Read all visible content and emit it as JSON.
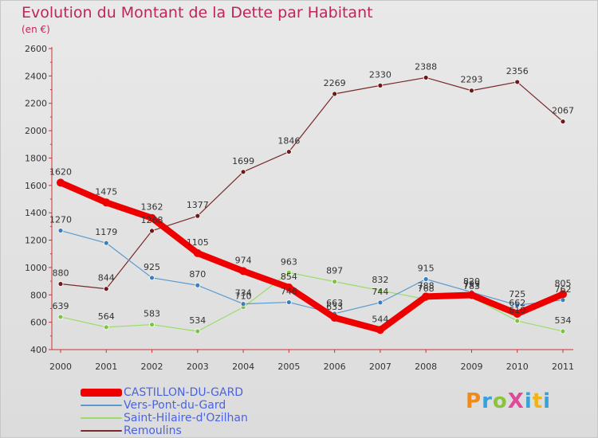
{
  "header": {
    "title": "Evolution du Montant de la Dette par Habitant",
    "unit": "(en €)"
  },
  "brand": {
    "logo_text": "ProXiti"
  },
  "chart_data": {
    "type": "line",
    "title": "Evolution du Montant de la Dette par Habitant",
    "subtitle": "(en €)",
    "xlabel": "",
    "ylabel": "",
    "x": [
      "2000",
      "2001",
      "2002",
      "2003",
      "2004",
      "2005",
      "2006",
      "2007",
      "2008",
      "2009",
      "2010",
      "2011"
    ],
    "ylim": [
      400,
      2600
    ],
    "yticks": [
      400,
      600,
      800,
      1000,
      1200,
      1400,
      1600,
      1800,
      2000,
      2200,
      2400,
      2600
    ],
    "grid": false,
    "legend_position": "bottom-left",
    "series": [
      {
        "name": "CASTILLON-DU-GARD",
        "color": "#ee0000",
        "marker_color": "#ee0000",
        "values": [
          1620,
          1475,
          1362,
          1105,
          974,
          854,
          633,
          544,
          788,
          799,
          662,
          805
        ],
        "labels": [
          "1620",
          "1475",
          "1362",
          "1105",
          "974",
          "854",
          "633",
          "544",
          "788",
          "799",
          "662",
          "805"
        ]
      },
      {
        "name": "Vers-Pont-du-Gard",
        "color": "#5a9ad2",
        "marker_color": "#3c7dbf",
        "values": [
          1270,
          1179,
          925,
          870,
          734,
          746,
          663,
          744,
          915,
          820,
          725,
          762
        ],
        "labels": [
          "1270",
          "1179",
          "925",
          "870",
          "734",
          "746",
          "663",
          "744",
          "915",
          "820",
          "725",
          "762"
        ]
      },
      {
        "name": "Saint-Hilaire-d'Ozilhan",
        "color": "#99dd66",
        "marker_color": "#7cc444",
        "values": [
          639,
          564,
          583,
          534,
          710,
          963,
          897,
          832,
          768,
          783,
          610,
          534
        ],
        "labels": [
          "639",
          "564",
          "583",
          "534",
          "710",
          "963",
          "897",
          "832",
          "768",
          "783",
          "610",
          "534"
        ]
      },
      {
        "name": "Remoulins",
        "color": "#7a2a2a",
        "marker_color": "#6a1a1a",
        "values": [
          880,
          844,
          1268,
          1377,
          1699,
          1846,
          2269,
          2330,
          2388,
          2293,
          2356,
          2067
        ],
        "labels": [
          "880",
          "844",
          "1268",
          "1377",
          "1699",
          "1846",
          "2269",
          "2330",
          "2388",
          "2293",
          "2356",
          "2067"
        ]
      }
    ]
  }
}
